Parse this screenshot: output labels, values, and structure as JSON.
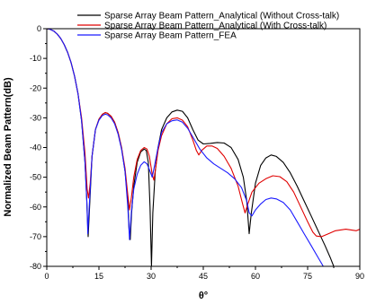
{
  "chart_data": {
    "type": "line",
    "xlabel": "θ°",
    "ylabel": "Normalized Beam Pattern(dB)",
    "xlim": [
      0,
      90
    ],
    "ylim": [
      -80,
      0
    ],
    "x_ticks": [
      0,
      15,
      30,
      45,
      60,
      75,
      90
    ],
    "y_ticks": [
      0,
      -10,
      -20,
      -30,
      -40,
      -50,
      -60,
      -70,
      -80
    ],
    "grid": false,
    "legend_position": "top-right",
    "series": [
      {
        "name": "Sparse Array Beam Pattern_Analytical (Without Cross-talk)",
        "color": "#000000",
        "points": [
          [
            0,
            0
          ],
          [
            1,
            -0.2
          ],
          [
            2,
            -0.8
          ],
          [
            3,
            -1.8
          ],
          [
            4,
            -3.3
          ],
          [
            5,
            -5.3
          ],
          [
            6,
            -8
          ],
          [
            7,
            -11.5
          ],
          [
            8,
            -16
          ],
          [
            9,
            -22
          ],
          [
            10,
            -31
          ],
          [
            11,
            -45
          ],
          [
            11.5,
            -58
          ],
          [
            11.9,
            -70
          ],
          [
            12.3,
            -60
          ],
          [
            13,
            -43
          ],
          [
            14,
            -34
          ],
          [
            15,
            -30.5
          ],
          [
            16,
            -28.8
          ],
          [
            16.8,
            -28.3
          ],
          [
            17.5,
            -28.5
          ],
          [
            18.5,
            -29.5
          ],
          [
            19.5,
            -31.5
          ],
          [
            20.5,
            -35
          ],
          [
            21.5,
            -40
          ],
          [
            22.5,
            -48
          ],
          [
            23.3,
            -58
          ],
          [
            23.7,
            -68
          ],
          [
            24,
            -71
          ],
          [
            24.4,
            -62
          ],
          [
            25,
            -53
          ],
          [
            26,
            -45
          ],
          [
            27,
            -41.5
          ],
          [
            28,
            -40.5
          ],
          [
            28.6,
            -41
          ],
          [
            29.2,
            -45
          ],
          [
            29.7,
            -60
          ],
          [
            30.1,
            -80
          ],
          [
            30.5,
            -62
          ],
          [
            31.2,
            -48
          ],
          [
            32,
            -40
          ],
          [
            33,
            -34
          ],
          [
            34.5,
            -30
          ],
          [
            36,
            -28
          ],
          [
            37.5,
            -27.4
          ],
          [
            39,
            -27.8
          ],
          [
            40.5,
            -30
          ],
          [
            42,
            -34
          ],
          [
            43.5,
            -37.5
          ],
          [
            45,
            -38.8
          ],
          [
            47,
            -38.6
          ],
          [
            49,
            -38.3
          ],
          [
            51,
            -38.5
          ],
          [
            53,
            -40
          ],
          [
            55,
            -44
          ],
          [
            56.5,
            -50
          ],
          [
            57.5,
            -58
          ],
          [
            58.2,
            -69
          ],
          [
            58.8,
            -62
          ],
          [
            60,
            -52
          ],
          [
            61.5,
            -46
          ],
          [
            63,
            -43.5
          ],
          [
            64.5,
            -42.5
          ],
          [
            66,
            -43
          ],
          [
            68,
            -45
          ],
          [
            70,
            -48.5
          ],
          [
            72,
            -53
          ],
          [
            74,
            -58
          ],
          [
            76,
            -63
          ],
          [
            78,
            -68
          ],
          [
            80,
            -73
          ],
          [
            81.5,
            -77
          ],
          [
            82.5,
            -80
          ]
        ]
      },
      {
        "name": "Sparse Array Beam Pattern_Analytical (With Cross-talk)",
        "color": "#e00000",
        "points": [
          [
            0,
            0
          ],
          [
            1,
            -0.2
          ],
          [
            2,
            -0.8
          ],
          [
            3,
            -1.8
          ],
          [
            4,
            -3.3
          ],
          [
            5,
            -5.3
          ],
          [
            6,
            -8
          ],
          [
            7,
            -11.5
          ],
          [
            8,
            -16
          ],
          [
            9,
            -22
          ],
          [
            10,
            -30
          ],
          [
            11,
            -42
          ],
          [
            11.6,
            -54
          ],
          [
            12,
            -57
          ],
          [
            12.5,
            -52
          ],
          [
            13,
            -43
          ],
          [
            14,
            -34
          ],
          [
            15,
            -30.5
          ],
          [
            16,
            -28.8
          ],
          [
            16.8,
            -28.2
          ],
          [
            17.5,
            -28.5
          ],
          [
            18.5,
            -29.5
          ],
          [
            19.5,
            -31.5
          ],
          [
            20.5,
            -35
          ],
          [
            21.5,
            -40
          ],
          [
            22.5,
            -47
          ],
          [
            23.3,
            -56
          ],
          [
            23.8,
            -61
          ],
          [
            24.3,
            -57
          ],
          [
            25,
            -50
          ],
          [
            26,
            -44
          ],
          [
            27,
            -41
          ],
          [
            28,
            -40
          ],
          [
            28.8,
            -40.5
          ],
          [
            29.5,
            -43
          ],
          [
            30.3,
            -49
          ],
          [
            30.8,
            -51
          ],
          [
            31.3,
            -47
          ],
          [
            32,
            -41
          ],
          [
            33,
            -36
          ],
          [
            34.5,
            -32
          ],
          [
            36,
            -30.3
          ],
          [
            37.5,
            -30
          ],
          [
            39,
            -30.8
          ],
          [
            40.5,
            -33
          ],
          [
            42,
            -37.5
          ],
          [
            43,
            -41
          ],
          [
            43.7,
            -42.5
          ],
          [
            44.5,
            -41
          ],
          [
            46,
            -39.5
          ],
          [
            47.5,
            -39.5
          ],
          [
            49,
            -40.3
          ],
          [
            51,
            -43
          ],
          [
            53,
            -47
          ],
          [
            55,
            -53
          ],
          [
            56.3,
            -59
          ],
          [
            57,
            -62
          ],
          [
            57.8,
            -59
          ],
          [
            59,
            -55
          ],
          [
            61,
            -52
          ],
          [
            63,
            -50.5
          ],
          [
            65,
            -49.5
          ],
          [
            67,
            -49.8
          ],
          [
            69,
            -51.5
          ],
          [
            71,
            -55
          ],
          [
            73,
            -60
          ],
          [
            75,
            -65
          ],
          [
            76.5,
            -68.5
          ],
          [
            77.5,
            -69.8
          ],
          [
            79,
            -70
          ],
          [
            81,
            -69
          ],
          [
            83,
            -68
          ],
          [
            86,
            -67.5
          ],
          [
            89,
            -68
          ],
          [
            90,
            -67.5
          ]
        ]
      },
      {
        "name": "Sparse Array Beam Pattern_FEA",
        "color": "#1a1aff",
        "points": [
          [
            0,
            0
          ],
          [
            1,
            -0.2
          ],
          [
            2,
            -0.8
          ],
          [
            3,
            -1.8
          ],
          [
            4,
            -3.3
          ],
          [
            5,
            -5.3
          ],
          [
            6,
            -8
          ],
          [
            7,
            -11.5
          ],
          [
            8,
            -16
          ],
          [
            9,
            -22
          ],
          [
            10,
            -31
          ],
          [
            11,
            -45
          ],
          [
            11.5,
            -58
          ],
          [
            11.8,
            -69
          ],
          [
            12.2,
            -60
          ],
          [
            13,
            -43
          ],
          [
            14,
            -34
          ],
          [
            15,
            -30.8
          ],
          [
            16,
            -29.2
          ],
          [
            16.8,
            -28.8
          ],
          [
            17.5,
            -29
          ],
          [
            18.5,
            -30
          ],
          [
            19.5,
            -32
          ],
          [
            20.5,
            -35.5
          ],
          [
            21.5,
            -40.5
          ],
          [
            22.5,
            -48
          ],
          [
            23.3,
            -60
          ],
          [
            23.8,
            -71
          ],
          [
            24.3,
            -62
          ],
          [
            25,
            -54
          ],
          [
            26,
            -49
          ],
          [
            27,
            -46
          ],
          [
            28,
            -44.8
          ],
          [
            28.8,
            -45.5
          ],
          [
            29.5,
            -47.5
          ],
          [
            30.3,
            -50
          ],
          [
            31,
            -46
          ],
          [
            32,
            -40
          ],
          [
            33,
            -35
          ],
          [
            34.5,
            -32
          ],
          [
            36,
            -31
          ],
          [
            37.5,
            -30.7
          ],
          [
            39,
            -31.5
          ],
          [
            40.5,
            -33.5
          ],
          [
            42,
            -36.5
          ],
          [
            44,
            -40.5
          ],
          [
            46,
            -43.5
          ],
          [
            48,
            -45.5
          ],
          [
            50,
            -47
          ],
          [
            52,
            -48.5
          ],
          [
            54,
            -50.5
          ],
          [
            56,
            -53.5
          ],
          [
            57.5,
            -58
          ],
          [
            58.2,
            -62
          ],
          [
            59,
            -63
          ],
          [
            60,
            -61
          ],
          [
            61.5,
            -59
          ],
          [
            63,
            -57.5
          ],
          [
            64.5,
            -57
          ],
          [
            66,
            -57.3
          ],
          [
            68,
            -58.5
          ],
          [
            70,
            -61
          ],
          [
            72,
            -65
          ],
          [
            74,
            -69
          ],
          [
            76,
            -73
          ],
          [
            78,
            -77
          ],
          [
            79.5,
            -80
          ]
        ]
      }
    ]
  }
}
